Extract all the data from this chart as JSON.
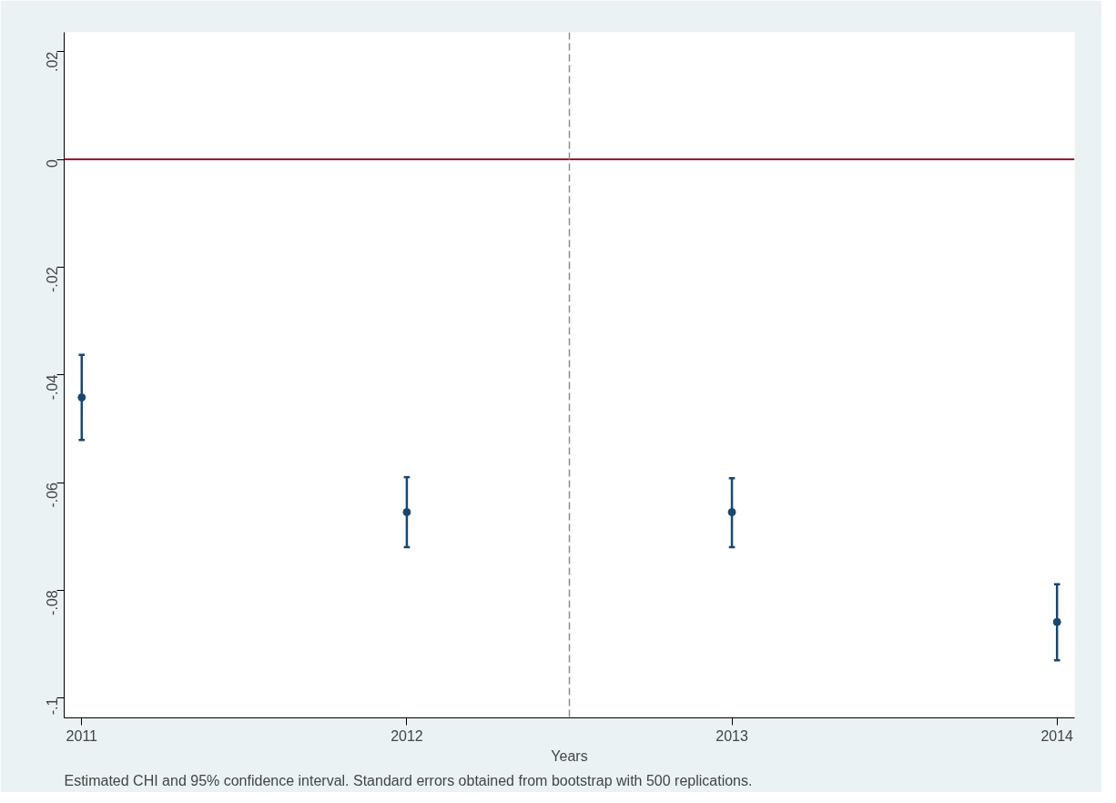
{
  "chart_data": {
    "type": "scatter",
    "xlabel": "Years",
    "x": [
      2011,
      2012,
      2013,
      2014
    ],
    "series": [
      {
        "color": "#1a476f",
        "values": [
          -0.0442,
          -0.0655,
          -0.0655,
          -0.0859
        ],
        "errors": [
          [
            -0.0521,
            -0.0363
          ],
          [
            -0.072,
            -0.059
          ],
          [
            -0.072,
            -0.0592
          ],
          [
            -0.093,
            -0.0789
          ]
        ]
      }
    ],
    "marker": "circle",
    "xlim": [
      2010.946,
      2014.054
    ],
    "xticks": [
      2011,
      2012,
      2013,
      2014
    ],
    "ylim": [
      -0.1037,
      0.0236
    ],
    "yticks": [
      {
        "value": 0.02,
        "label": ".02"
      },
      {
        "value": 0,
        "label": "0"
      },
      {
        "value": -0.02,
        "label": "-.02"
      },
      {
        "value": -0.04,
        "label": "-.04"
      },
      {
        "value": -0.06,
        "label": "-.06"
      },
      {
        "value": -0.08,
        "label": "-.08"
      },
      {
        "value": -0.1,
        "label": "-.1"
      }
    ],
    "ref_lines": [
      {
        "axis": "y",
        "value": 0,
        "color": "#a0102e",
        "line_style": "solid"
      },
      {
        "axis": "x",
        "value": 2012.5,
        "color": "#8c8c8c",
        "line_style": "dashed"
      }
    ],
    "grid": false,
    "annotations": [
      "Estimated CHI and 95% confidence interval. Standard errors obtained from bootstrap with 500 replications."
    ]
  }
}
